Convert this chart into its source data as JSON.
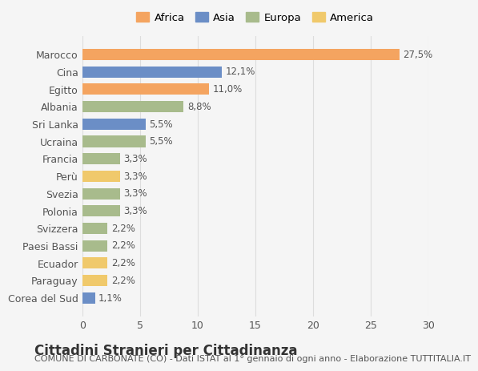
{
  "countries": [
    "Marocco",
    "Cina",
    "Egitto",
    "Albania",
    "Sri Lanka",
    "Ucraina",
    "Francia",
    "Perù",
    "Svezia",
    "Polonia",
    "Svizzera",
    "Paesi Bassi",
    "Ecuador",
    "Paraguay",
    "Corea del Sud"
  ],
  "values": [
    27.5,
    12.1,
    11.0,
    8.8,
    5.5,
    5.5,
    3.3,
    3.3,
    3.3,
    3.3,
    2.2,
    2.2,
    2.2,
    2.2,
    1.1
  ],
  "labels": [
    "27,5%",
    "12,1%",
    "11,0%",
    "8,8%",
    "5,5%",
    "5,5%",
    "3,3%",
    "3,3%",
    "3,3%",
    "3,3%",
    "2,2%",
    "2,2%",
    "2,2%",
    "2,2%",
    "1,1%"
  ],
  "continents": [
    "Africa",
    "Asia",
    "Africa",
    "Europa",
    "Asia",
    "Europa",
    "Europa",
    "America",
    "Europa",
    "Europa",
    "Europa",
    "Europa",
    "America",
    "America",
    "Asia"
  ],
  "continent_colors": {
    "Africa": "#F4A460",
    "Asia": "#6B8EC6",
    "Europa": "#A8BB8C",
    "America": "#F0C96B"
  },
  "legend_order": [
    "Africa",
    "Asia",
    "Europa",
    "America"
  ],
  "title": "Cittadini Stranieri per Cittadinanza",
  "subtitle": "COMUNE DI CARBONATE (CO) - Dati ISTAT al 1° gennaio di ogni anno - Elaborazione TUTTITALIA.IT",
  "xlim": [
    0,
    30
  ],
  "xticks": [
    0,
    5,
    10,
    15,
    20,
    25,
    30
  ],
  "background_color": "#f5f5f5",
  "bar_background": "#ffffff",
  "grid_color": "#dddddd",
  "title_fontsize": 12,
  "subtitle_fontsize": 8,
  "label_fontsize": 8.5,
  "tick_fontsize": 9
}
